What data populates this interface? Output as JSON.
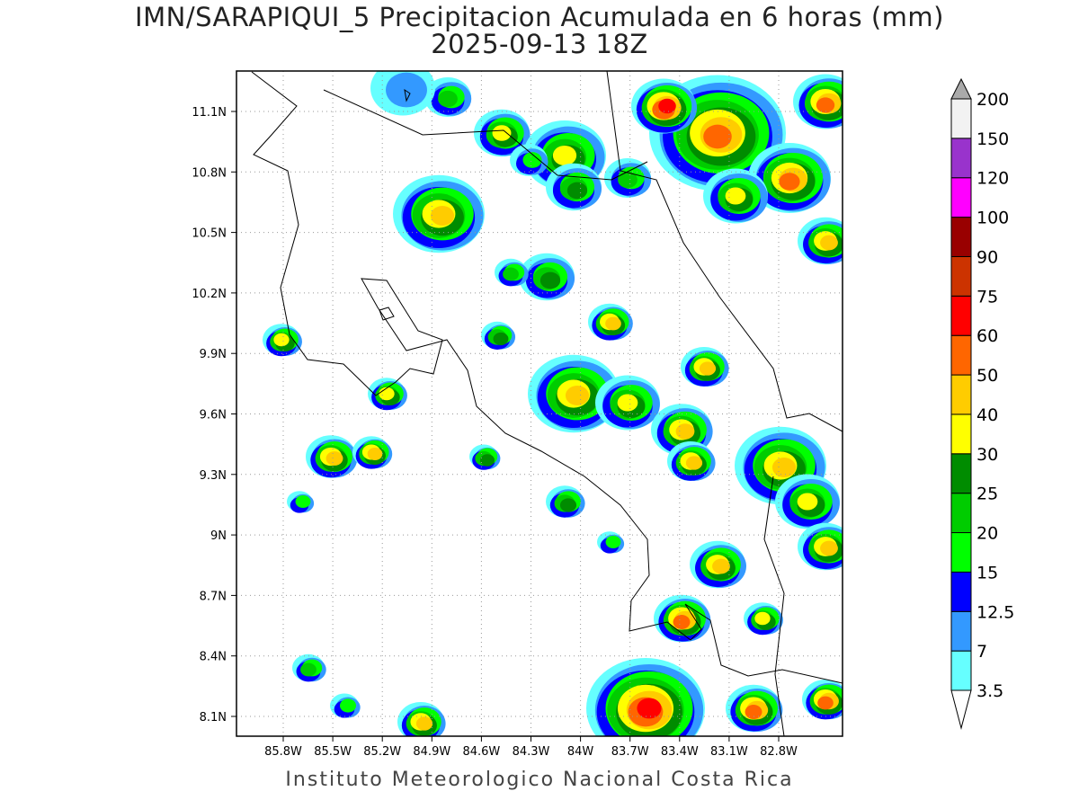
{
  "title": {
    "line1": "IMN/SARAPIQUI_5 Precipitacion Acumulada en 6 horas (mm)",
    "line2": "2025-09-13 18Z"
  },
  "footer": "Instituto Meteorologico Nacional Costa Rica",
  "axes": {
    "lat_ticks": [
      "11.1N",
      "10.8N",
      "10.5N",
      "10.2N",
      "9.9N",
      "9.6N",
      "9.3N",
      "9N",
      "8.7N",
      "8.4N",
      "8.1N"
    ],
    "lon_ticks": [
      "85.8W",
      "85.5W",
      "85.2W",
      "84.9W",
      "84.6W",
      "84.3W",
      "84W",
      "83.7W",
      "83.4W",
      "83.1W",
      "82.8W"
    ]
  },
  "colorbar": {
    "levels": [
      "3.5",
      "7",
      "12.5",
      "15",
      "20",
      "25",
      "30",
      "40",
      "50",
      "60",
      "75",
      "90",
      "100",
      "120",
      "150",
      "200"
    ],
    "colors": [
      "#66ffff",
      "#3399ff",
      "#0000ff",
      "#00ff00",
      "#00cc00",
      "#008c00",
      "#ffff00",
      "#ffcc00",
      "#ff6600",
      "#ff0000",
      "#cc3300",
      "#990000",
      "#ff00ff",
      "#9933cc",
      "#f2f2f2"
    ],
    "over_color": "#aaaaaa",
    "under_color": "#ffffff"
  }
}
